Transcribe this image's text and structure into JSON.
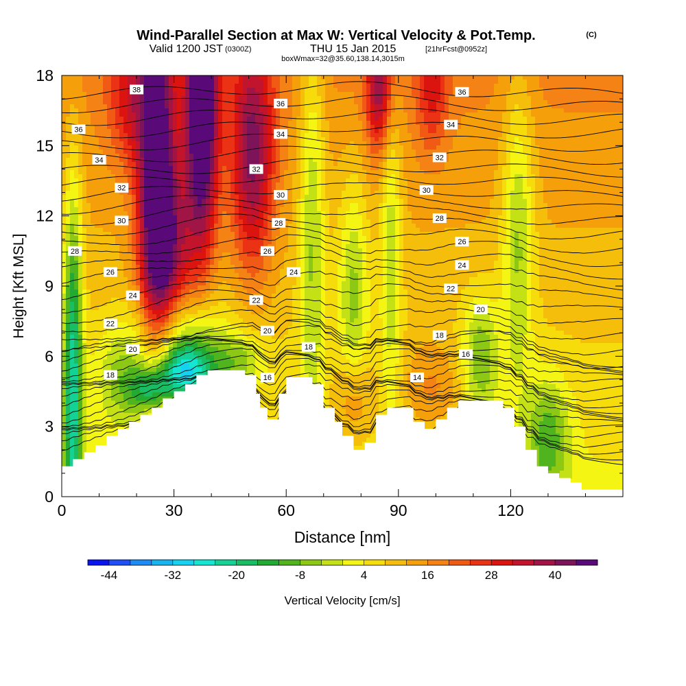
{
  "header": {
    "title": "Wind-Parallel Section at Max W: Vertical Velocity & Pot.Temp.",
    "copyright": "(C)",
    "valid_main": "Valid 1200 JST",
    "valid_zulu": "(0300Z)",
    "valid_date": "THU 15 Jan 2015",
    "forecast": "[21hrFcst@0952z]",
    "box_info": "boxWmax=32@35.60,138.14,3015m"
  },
  "chart_data": {
    "type": "heatmap",
    "xlabel": "Distance [nm]",
    "ylabel": "Height [Kft MSL]",
    "xlim": [
      0,
      150
    ],
    "ylim": [
      0,
      18
    ],
    "xticks": [
      0,
      30,
      60,
      90,
      120
    ],
    "yticks": [
      0,
      3,
      6,
      9,
      12,
      15,
      18
    ],
    "colorbar": {
      "label": "Vertical Velocity [cm/s]",
      "ticks": [
        -44,
        -32,
        -20,
        -8,
        4,
        16,
        28,
        40
      ],
      "min": -48,
      "step": 4,
      "colors": [
        "#0a14f0",
        "#1e50f5",
        "#1e8cf5",
        "#19b4f0",
        "#14d2f0",
        "#14e6d2",
        "#14d296",
        "#19be64",
        "#23aa32",
        "#50b41e",
        "#8cc814",
        "#c3e114",
        "#f5f514",
        "#f5dc0a",
        "#f5be0a",
        "#f5a00a",
        "#f58214",
        "#f05a14",
        "#eb3214",
        "#dc140f",
        "#c3142d",
        "#a01446",
        "#7d145a",
        "#5a0a78"
      ]
    },
    "terrain": [
      [
        0,
        1.3
      ],
      [
        3,
        1.3
      ],
      [
        3,
        1.6
      ],
      [
        6,
        1.6
      ],
      [
        6,
        1.9
      ],
      [
        9,
        1.9
      ],
      [
        9,
        2.2
      ],
      [
        12,
        2.2
      ],
      [
        12,
        2.6
      ],
      [
        15,
        2.6
      ],
      [
        15,
        2.9
      ],
      [
        18,
        2.9
      ],
      [
        18,
        3.2
      ],
      [
        21,
        3.2
      ],
      [
        21,
        3.5
      ],
      [
        24,
        3.5
      ],
      [
        24,
        3.8
      ],
      [
        27,
        3.8
      ],
      [
        27,
        4.2
      ],
      [
        30,
        4.2
      ],
      [
        30,
        4.5
      ],
      [
        33,
        4.5
      ],
      [
        33,
        4.8
      ],
      [
        36,
        4.8
      ],
      [
        36,
        5.2
      ],
      [
        39,
        5.2
      ],
      [
        39,
        5.4
      ],
      [
        49,
        5.4
      ],
      [
        49,
        5.2
      ],
      [
        52,
        5.2
      ],
      [
        52,
        4.4
      ],
      [
        53,
        4.4
      ],
      [
        53,
        3.8
      ],
      [
        55,
        3.8
      ],
      [
        55,
        3.3
      ],
      [
        58,
        3.3
      ],
      [
        58,
        4.4
      ],
      [
        60,
        4.4
      ],
      [
        60,
        5.1
      ],
      [
        67,
        5.1
      ],
      [
        67,
        4.8
      ],
      [
        70,
        4.8
      ],
      [
        70,
        3.8
      ],
      [
        73,
        3.8
      ],
      [
        73,
        3.2
      ],
      [
        75,
        3.2
      ],
      [
        75,
        2.6
      ],
      [
        78,
        2.6
      ],
      [
        78,
        2.0
      ],
      [
        81,
        2.0
      ],
      [
        81,
        2.3
      ],
      [
        84,
        2.3
      ],
      [
        84,
        3.5
      ],
      [
        87,
        3.5
      ],
      [
        87,
        3.8
      ],
      [
        94,
        3.8
      ],
      [
        94,
        3.2
      ],
      [
        97,
        3.2
      ],
      [
        97,
        2.9
      ],
      [
        100,
        2.9
      ],
      [
        100,
        3.3
      ],
      [
        103,
        3.3
      ],
      [
        103,
        3.8
      ],
      [
        106,
        3.8
      ],
      [
        106,
        4.1
      ],
      [
        118,
        4.1
      ],
      [
        118,
        3.8
      ],
      [
        121,
        3.8
      ],
      [
        121,
        3.0
      ],
      [
        124,
        3.0
      ],
      [
        124,
        2.0
      ],
      [
        127,
        2.0
      ],
      [
        127,
        1.3
      ],
      [
        130,
        1.3
      ],
      [
        130,
        1.0
      ],
      [
        133,
        1.0
      ],
      [
        133,
        0.8
      ],
      [
        136,
        0.8
      ],
      [
        136,
        0.6
      ],
      [
        139,
        0.6
      ],
      [
        139,
        0.3
      ],
      [
        142,
        0.3
      ],
      [
        142,
        0.3
      ],
      [
        150,
        0.3
      ]
    ],
    "theta_lines": [
      {
        "base": 1.6,
        "spacing": 0.25,
        "count": 18
      },
      {
        "base": 5.8,
        "spacing": 0.55,
        "count": 22
      }
    ],
    "contour_labels": [
      {
        "text": "38",
        "x": 20,
        "y": 17.4
      },
      {
        "text": "36",
        "x": 4.5,
        "y": 15.7
      },
      {
        "text": "34",
        "x": 10,
        "y": 14.4
      },
      {
        "text": "32",
        "x": 16,
        "y": 13.2
      },
      {
        "text": "30",
        "x": 16,
        "y": 11.8
      },
      {
        "text": "28",
        "x": 3.5,
        "y": 10.5
      },
      {
        "text": "26",
        "x": 13,
        "y": 9.6
      },
      {
        "text": "24",
        "x": 19,
        "y": 8.6
      },
      {
        "text": "22",
        "x": 13,
        "y": 7.4
      },
      {
        "text": "20",
        "x": 19,
        "y": 6.3
      },
      {
        "text": "18",
        "x": 13,
        "y": 5.2
      },
      {
        "text": "36",
        "x": 58.5,
        "y": 16.8
      },
      {
        "text": "34",
        "x": 58.5,
        "y": 15.5
      },
      {
        "text": "32",
        "x": 52,
        "y": 14.0
      },
      {
        "text": "30",
        "x": 58.5,
        "y": 12.9
      },
      {
        "text": "28",
        "x": 58,
        "y": 11.7
      },
      {
        "text": "26",
        "x": 55,
        "y": 10.5
      },
      {
        "text": "24",
        "x": 62,
        "y": 9.6
      },
      {
        "text": "22",
        "x": 52,
        "y": 8.4
      },
      {
        "text": "20",
        "x": 55,
        "y": 7.1
      },
      {
        "text": "18",
        "x": 66,
        "y": 6.4
      },
      {
        "text": "16",
        "x": 55,
        "y": 5.1
      },
      {
        "text": "36",
        "x": 107,
        "y": 17.3
      },
      {
        "text": "34",
        "x": 104,
        "y": 15.9
      },
      {
        "text": "32",
        "x": 101,
        "y": 14.5
      },
      {
        "text": "30",
        "x": 97.5,
        "y": 13.1
      },
      {
        "text": "28",
        "x": 101,
        "y": 11.9
      },
      {
        "text": "26",
        "x": 107,
        "y": 10.9
      },
      {
        "text": "24",
        "x": 107,
        "y": 9.9
      },
      {
        "text": "22",
        "x": 104,
        "y": 8.9
      },
      {
        "text": "20",
        "x": 112,
        "y": 8.0
      },
      {
        "text": "18",
        "x": 101,
        "y": 6.9
      },
      {
        "text": "16",
        "x": 108,
        "y": 6.1
      },
      {
        "text": "14",
        "x": 95,
        "y": 5.1
      }
    ],
    "features": [
      {
        "x": 25.5,
        "y": 13.5,
        "sx": 3.5,
        "sy": 5.5,
        "amp": 40
      },
      {
        "x": 37.5,
        "y": 16.5,
        "sx": 3.0,
        "sy": 4.0,
        "amp": 44
      },
      {
        "x": 30,
        "y": 10.5,
        "sx": 5.0,
        "sy": 2.5,
        "amp": 18
      },
      {
        "x": 51,
        "y": 14.5,
        "sx": 4.0,
        "sy": 3.5,
        "amp": 28
      },
      {
        "x": 85,
        "y": 17.5,
        "sx": 2.5,
        "sy": 2.0,
        "amp": 24
      },
      {
        "x": 99,
        "y": 17.5,
        "sx": 3.0,
        "sy": 2.0,
        "amp": 14
      },
      {
        "x": 18,
        "y": 17.0,
        "sx": 4.0,
        "sy": 2.0,
        "amp": 14
      },
      {
        "x": 3,
        "y": 5.0,
        "sx": 1.8,
        "sy": 6.0,
        "amp": -30
      },
      {
        "x": 33,
        "y": 5.3,
        "sx": 6.0,
        "sy": 0.9,
        "amp": -34
      },
      {
        "x": 24,
        "y": 4.5,
        "sx": 4.0,
        "sy": 0.7,
        "amp": -22
      },
      {
        "x": 32,
        "y": 7.0,
        "sx": 9.0,
        "sy": 1.2,
        "amp": -14
      },
      {
        "x": 16,
        "y": 5.0,
        "sx": 5.0,
        "sy": 1.5,
        "amp": -12
      },
      {
        "x": 67,
        "y": 12.0,
        "sx": 2.5,
        "sy": 6.0,
        "amp": -16
      },
      {
        "x": 78,
        "y": 9.0,
        "sx": 3.0,
        "sy": 3.5,
        "amp": -15
      },
      {
        "x": 88,
        "y": 11.0,
        "sx": 2.0,
        "sy": 5.0,
        "amp": -14
      },
      {
        "x": 112,
        "y": 6.0,
        "sx": 3.5,
        "sy": 1.8,
        "amp": -16
      },
      {
        "x": 122,
        "y": 11.5,
        "sx": 3.0,
        "sy": 4.5,
        "amp": -16
      },
      {
        "x": 130,
        "y": 2.5,
        "sx": 4.0,
        "sy": 1.8,
        "amp": -16
      },
      {
        "x": 48,
        "y": 5.8,
        "sx": 4.5,
        "sy": 0.8,
        "amp": -12
      },
      {
        "x": 78,
        "y": 4.0,
        "sx": 4.0,
        "sy": 1.5,
        "amp": 12
      },
      {
        "x": 99,
        "y": 4.5,
        "sx": 6.0,
        "sy": 1.5,
        "amp": 10
      }
    ],
    "baseline_velocity": 10
  }
}
